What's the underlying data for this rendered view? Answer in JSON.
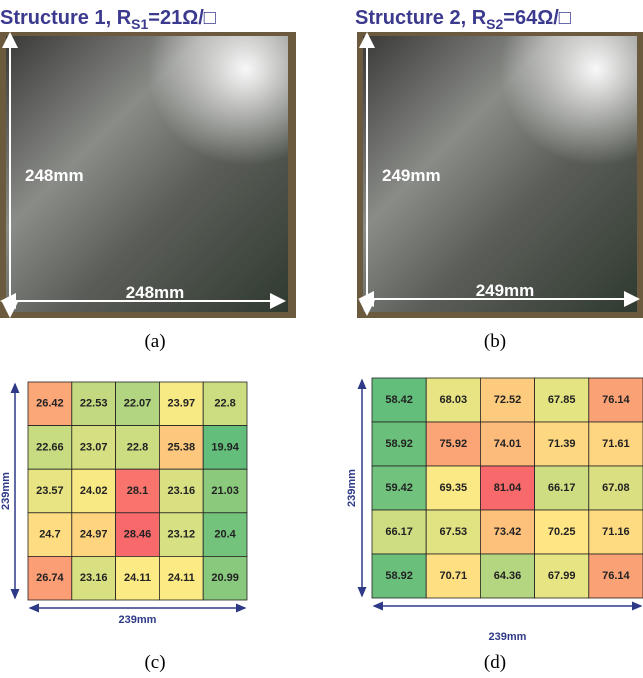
{
  "panels": [
    {
      "title": {
        "main": "Structure 1, R",
        "sub": "S1",
        "rest": "=21Ω/□"
      },
      "height_label": "248mm",
      "width_label": "248mm",
      "caption": "(a)"
    },
    {
      "title": {
        "main": "Structure 2, R",
        "sub": "S2",
        "rest": "=64Ω/□"
      },
      "height_label": "249mm",
      "width_label": "249mm",
      "caption": "(b)"
    }
  ],
  "heatmaps": [
    {
      "rows": [
        [
          26.42,
          22.53,
          22.07,
          23.97,
          22.8
        ],
        [
          22.66,
          23.07,
          22.8,
          25.38,
          19.94
        ],
        [
          23.57,
          24.02,
          28.1,
          23.16,
          21.03
        ],
        [
          24.7,
          24.97,
          28.46,
          23.12,
          20.4
        ],
        [
          26.74,
          23.16,
          24.11,
          24.11,
          20.99
        ]
      ],
      "side_label": "239mm",
      "bottom_label": "239mm",
      "caption": "(c)"
    },
    {
      "rows": [
        [
          58.42,
          68.03,
          72.52,
          67.85,
          76.14
        ],
        [
          58.92,
          75.92,
          74.01,
          71.39,
          71.61
        ],
        [
          59.42,
          69.35,
          81.04,
          66.17,
          67.08
        ],
        [
          66.17,
          67.53,
          73.42,
          70.25,
          71.16
        ],
        [
          58.92,
          70.71,
          64.36,
          67.99,
          76.14
        ]
      ],
      "side_label": "239mm",
      "bottom_label": "239mm",
      "caption": "(d)"
    }
  ],
  "colorscale": [
    "#63be7b",
    "#ffeb84",
    "#f8696b"
  ]
}
